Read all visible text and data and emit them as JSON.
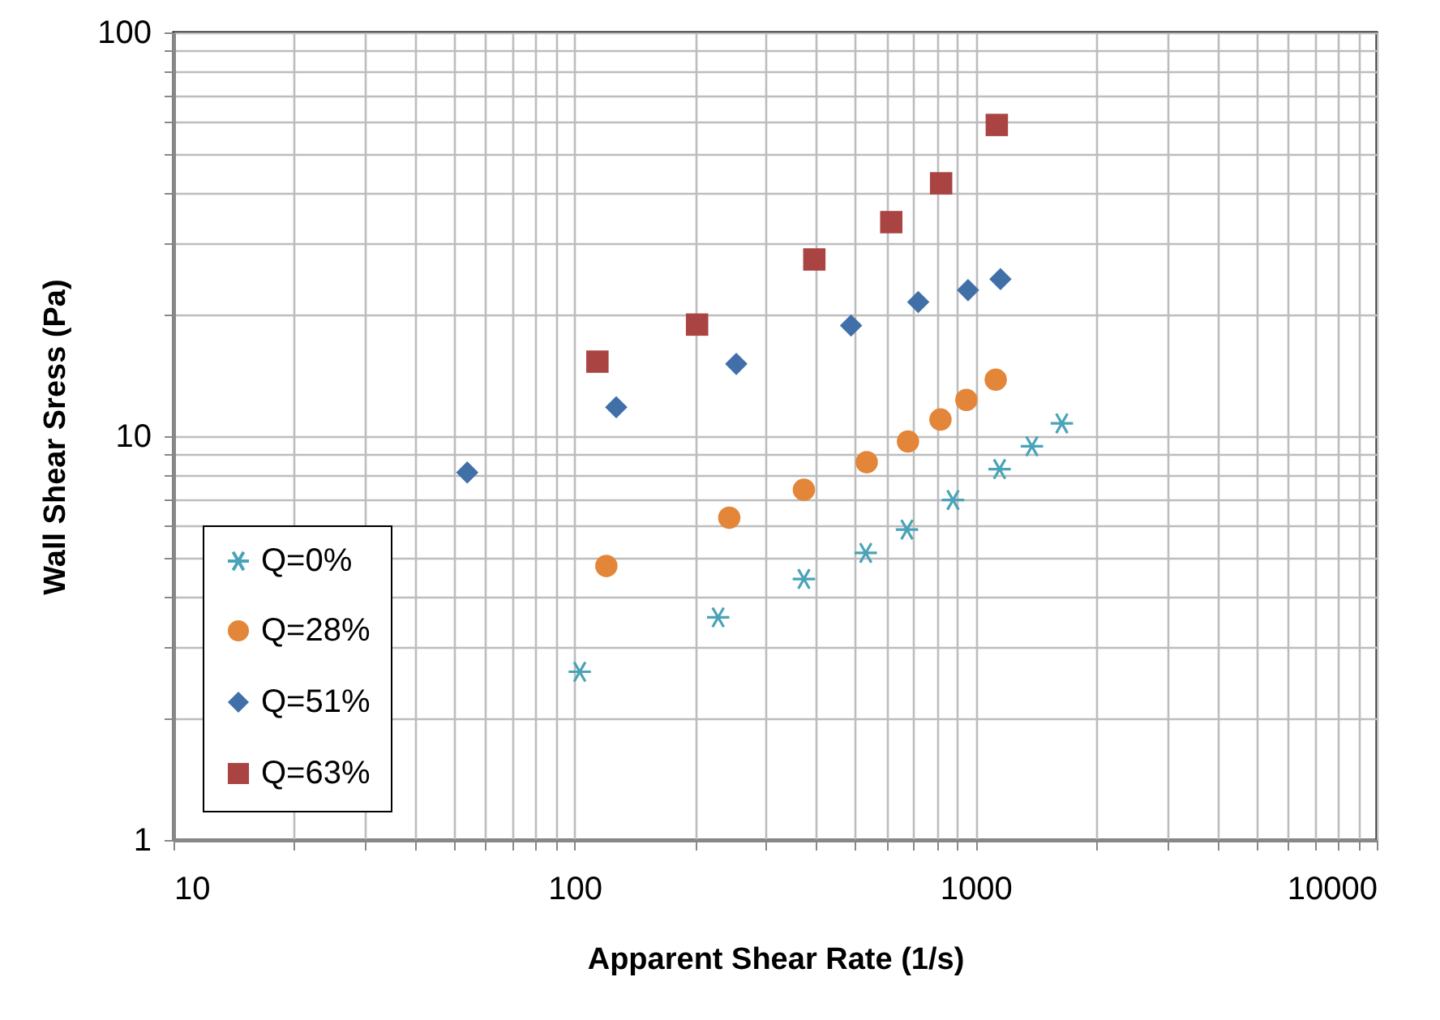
{
  "chart_data": {
    "type": "scatter",
    "xlabel": "Apparent Shear Rate (1/s)",
    "ylabel": "Wall Shear Sress (Pa)",
    "log": "xy",
    "grid": true,
    "legend": "bottom left",
    "xlim": [
      10,
      10000
    ],
    "ylim": [
      1,
      100
    ],
    "xticks": [
      10,
      {
        "value": 20,
        "label": null
      },
      {
        "value": 30,
        "label": null
      },
      {
        "value": 40,
        "label": null
      },
      {
        "value": 50,
        "label": null
      },
      {
        "value": 60,
        "label": null
      },
      {
        "value": 70,
        "label": null
      },
      {
        "value": 80,
        "label": null
      },
      {
        "value": 90,
        "label": null
      },
      100,
      {
        "value": 200,
        "label": null
      },
      {
        "value": 300,
        "label": null
      },
      {
        "value": 400,
        "label": null
      },
      {
        "value": 500,
        "label": null
      },
      {
        "value": 600,
        "label": null
      },
      {
        "value": 700,
        "label": null
      },
      {
        "value": 800,
        "label": null
      },
      {
        "value": 900,
        "label": null
      },
      1000,
      {
        "value": 2000,
        "label": null
      },
      {
        "value": 3000,
        "label": null
      },
      {
        "value": 4000,
        "label": null
      },
      {
        "value": 5000,
        "label": null
      },
      {
        "value": 6000,
        "label": null
      },
      {
        "value": 7000,
        "label": null
      },
      {
        "value": 8000,
        "label": null
      },
      {
        "value": 9000,
        "label": null
      },
      10000
    ],
    "yticks": [
      1,
      {
        "value": 2,
        "label": null
      },
      {
        "value": 3,
        "label": null
      },
      {
        "value": 4,
        "label": null
      },
      {
        "value": 5,
        "label": null
      },
      {
        "value": 6,
        "label": null
      },
      {
        "value": 7,
        "label": null
      },
      {
        "value": 8,
        "label": null
      },
      {
        "value": 9,
        "label": null
      },
      10,
      {
        "value": 20,
        "label": null
      },
      {
        "value": 30,
        "label": null
      },
      {
        "value": 40,
        "label": null
      },
      {
        "value": 50,
        "label": null
      },
      {
        "value": 60,
        "label": null
      },
      {
        "value": 70,
        "label": null
      },
      {
        "value": 80,
        "label": null
      },
      {
        "value": 90,
        "label": null
      },
      100
    ],
    "series": [
      {
        "name": "Q=0%",
        "color": "#4aa3b8",
        "marker": "cross",
        "x": [
          103,
          228,
          373,
          532,
          674,
          878,
          1147,
          1381,
          1640
        ],
        "values": [
          2.61,
          3.56,
          4.43,
          5.14,
          5.87,
          6.95,
          8.29,
          9.44,
          10.76
        ]
      },
      {
        "name": "Q=28%",
        "color": "#e3863a",
        "marker": "circle",
        "x": [
          120,
          243,
          373,
          535,
          678,
          817,
          948,
          1122
        ],
        "values": [
          4.77,
          6.28,
          7.37,
          8.62,
          9.7,
          11.0,
          12.3,
          13.8
        ]
      },
      {
        "name": "Q=51%",
        "color": "#4170a8",
        "marker": "diamond",
        "x": [
          54,
          127,
          253,
          489,
          719,
          957,
          1153
        ],
        "values": [
          8.13,
          11.8,
          15.1,
          18.8,
          21.5,
          23.0,
          24.5
        ]
      },
      {
        "name": "Q=63%",
        "color": "#a94442",
        "marker": "square",
        "x": [
          114,
          202,
          396,
          616,
          820,
          1129
        ],
        "values": [
          15.3,
          18.9,
          27.4,
          33.9,
          42.3,
          59.0
        ]
      }
    ]
  }
}
